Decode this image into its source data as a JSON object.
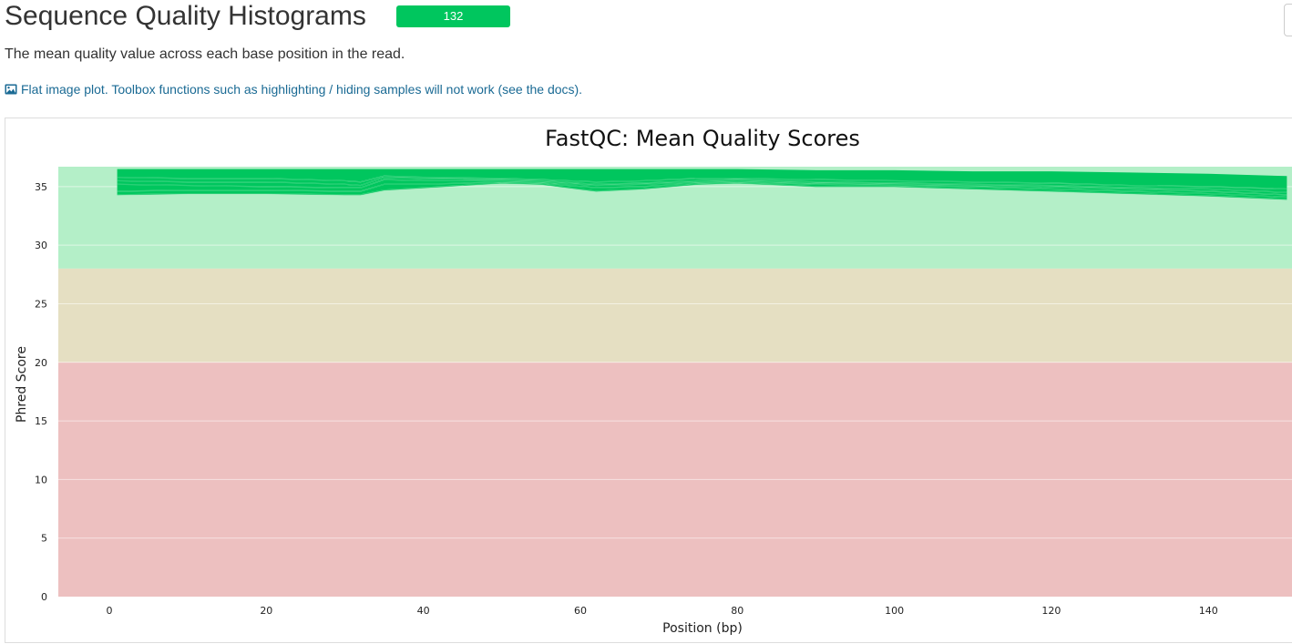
{
  "header": {
    "title": "Sequence Quality Histograms",
    "badge_count": "132",
    "badge_color": "#00c65e"
  },
  "description": "The mean quality value across each base position in the read.",
  "flat_notice": {
    "icon": "image-icon",
    "text": "Flat image plot. Toolbox functions such as highlighting / hiding samples will not work (see the docs)."
  },
  "chart_data": {
    "type": "line",
    "title": "FastQC: Mean Quality Scores",
    "xlabel": "Position (bp)",
    "ylabel": "Phred Score",
    "xlim": [
      -6.5,
      151
    ],
    "ylim": [
      0,
      36.7
    ],
    "xticks": [
      0,
      20,
      40,
      60,
      80,
      100,
      120,
      140
    ],
    "yticks": [
      0,
      5,
      10,
      15,
      20,
      25,
      30,
      35
    ],
    "grid": true,
    "legend": "none",
    "bands": [
      {
        "from": 28,
        "to": 36.7,
        "color": "#b4efc8",
        "label": "good"
      },
      {
        "from": 20,
        "to": 28,
        "color": "#e5dfc2",
        "label": "acceptable"
      },
      {
        "from": 0,
        "to": 20,
        "color": "#edc0c0",
        "label": "poor"
      }
    ],
    "series_color": "#00c65e",
    "series_count": 132,
    "envelope": {
      "x": [
        1,
        10,
        20,
        30,
        32,
        35,
        40,
        50,
        55,
        62,
        68,
        75,
        80,
        90,
        100,
        110,
        120,
        130,
        140,
        150
      ],
      "upper": [
        36.5,
        36.5,
        36.5,
        36.5,
        36.5,
        36.5,
        36.5,
        36.5,
        36.5,
        36.5,
        36.5,
        36.5,
        36.5,
        36.4,
        36.4,
        36.3,
        36.3,
        36.2,
        36.1,
        35.9
      ],
      "lower": [
        34.3,
        34.4,
        34.4,
        34.3,
        34.3,
        34.7,
        34.9,
        35.3,
        35.2,
        34.6,
        34.8,
        35.2,
        35.3,
        35.0,
        35.0,
        34.8,
        34.6,
        34.4,
        34.2,
        33.9
      ]
    },
    "series": [
      {
        "x": [
          1,
          10,
          20,
          30,
          32,
          35,
          40,
          50,
          55,
          62,
          68,
          75,
          80,
          90,
          100,
          110,
          120,
          130,
          140,
          150
        ],
        "values": [
          34.3,
          34.4,
          34.4,
          34.3,
          34.3,
          34.7,
          34.9,
          35.3,
          35.2,
          34.6,
          34.8,
          35.2,
          35.3,
          35.0,
          35.0,
          34.8,
          34.6,
          34.4,
          34.2,
          33.9
        ]
      },
      {
        "x": [
          1,
          10,
          20,
          30,
          32,
          35,
          40,
          50,
          55,
          62,
          68,
          75,
          80,
          90,
          100,
          110,
          120,
          130,
          140,
          150
        ],
        "values": [
          34.6,
          34.7,
          34.7,
          34.6,
          34.6,
          35.2,
          35.2,
          35.4,
          35.3,
          34.9,
          35.0,
          35.3,
          35.4,
          35.2,
          35.1,
          35.0,
          34.8,
          34.6,
          34.4,
          34.1
        ]
      },
      {
        "x": [
          1,
          10,
          20,
          30,
          32,
          35,
          40,
          50,
          55,
          62,
          68,
          75,
          80,
          90,
          100,
          110,
          120,
          130,
          140,
          150
        ],
        "values": [
          35.2,
          35.1,
          35.0,
          34.9,
          34.9,
          35.6,
          35.5,
          35.5,
          35.4,
          35.1,
          35.2,
          35.4,
          35.5,
          35.3,
          35.2,
          35.1,
          35.0,
          34.8,
          34.6,
          34.3
        ]
      },
      {
        "x": [
          1,
          10,
          20,
          30,
          32,
          35,
          40,
          50,
          55,
          62,
          68,
          75,
          80,
          90,
          100,
          110,
          120,
          130,
          140,
          150
        ],
        "values": [
          35.5,
          35.4,
          35.4,
          35.2,
          35.1,
          35.8,
          35.7,
          35.6,
          35.5,
          35.2,
          35.3,
          35.5,
          35.6,
          35.4,
          35.3,
          35.2,
          35.1,
          34.9,
          34.8,
          34.5
        ]
      },
      {
        "x": [
          1,
          10,
          20,
          30,
          32,
          35,
          40,
          50,
          55,
          62,
          68,
          75,
          80,
          90,
          100,
          110,
          120,
          130,
          140,
          150
        ],
        "values": [
          35.8,
          35.7,
          35.7,
          35.5,
          35.4,
          35.9,
          35.8,
          35.7,
          35.6,
          35.4,
          35.5,
          35.7,
          35.7,
          35.6,
          35.5,
          35.4,
          35.3,
          35.1,
          35.0,
          34.8
        ]
      }
    ]
  }
}
